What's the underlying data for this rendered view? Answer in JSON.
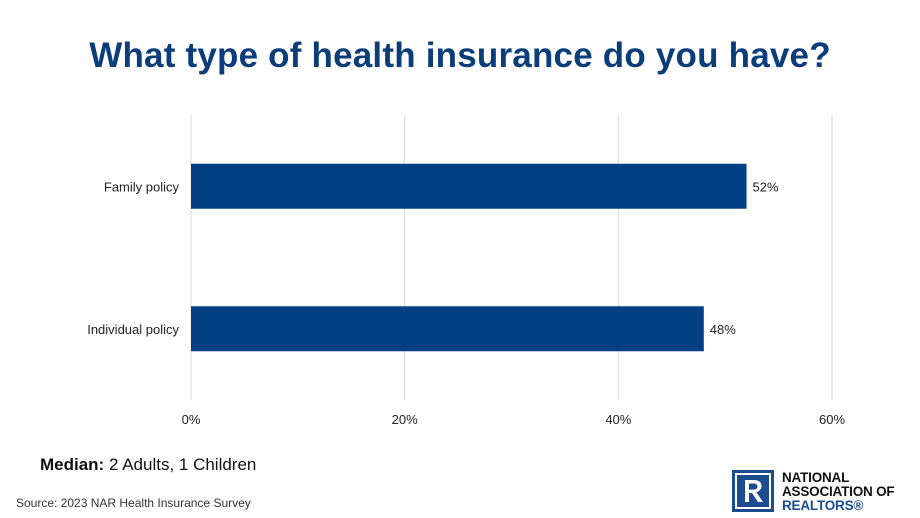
{
  "colors": {
    "bar": "#034083",
    "title": "#0a3d7a",
    "grid": "#d9d9d9",
    "logo": "#1a4c8f"
  },
  "chart_data": {
    "type": "bar",
    "orientation": "horizontal",
    "title": "What type of health insurance do you have?",
    "categories": [
      "Family policy",
      "Individual policy"
    ],
    "values": [
      52,
      48
    ],
    "value_labels": [
      "52%",
      "48%"
    ],
    "xlim": [
      0,
      60
    ],
    "x_ticks": [
      0,
      20,
      40,
      60
    ],
    "x_tick_labels": [
      "0%",
      "20%",
      "40%",
      "60%"
    ],
    "grid": true,
    "legend": "none"
  },
  "footer": {
    "median_label": "Median:",
    "median_value": " 2 Adults, 1 Children",
    "source": "Source: 2023 NAR Health Insurance Survey"
  },
  "logo": {
    "icon": "realtor-r-icon",
    "line1": "NATIONAL",
    "line2": "ASSOCIATION OF",
    "line3": "REALTORS®"
  }
}
